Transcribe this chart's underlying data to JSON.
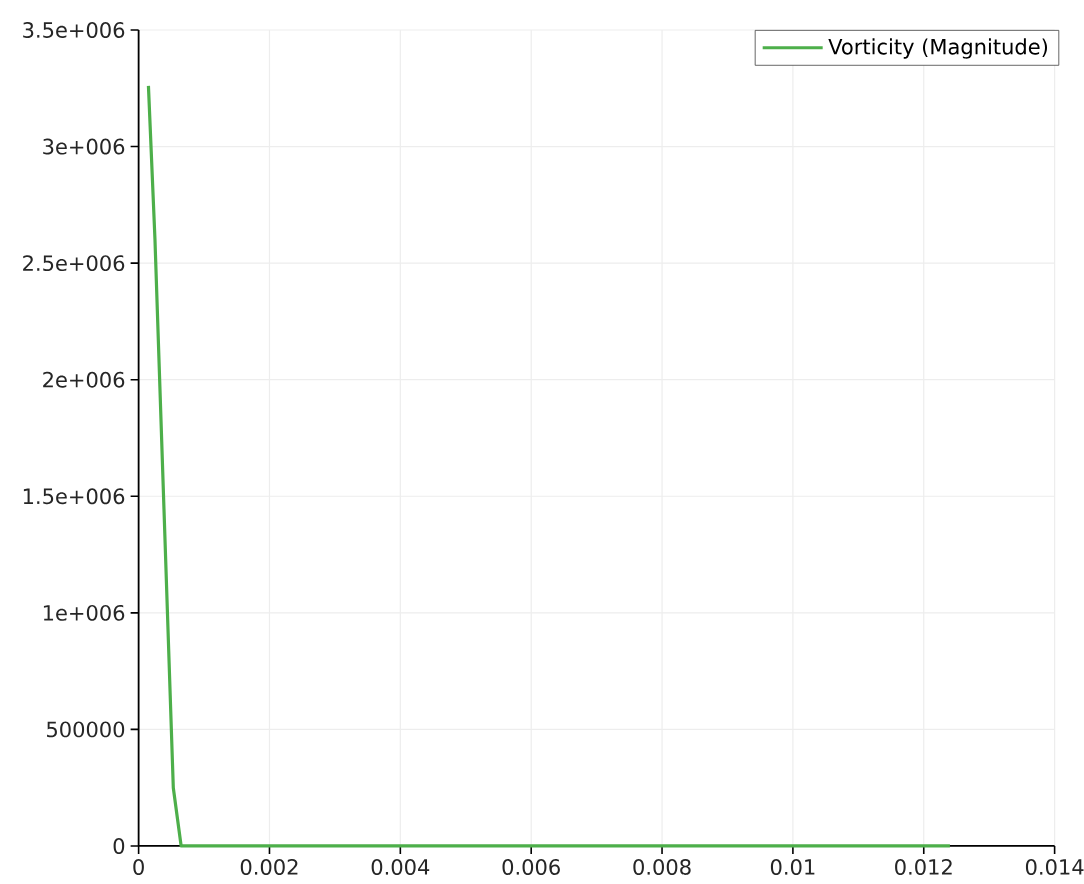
{
  "chart_data": {
    "type": "line",
    "series": [
      {
        "name": "Vorticity (Magnitude)",
        "color": "#4daf4a",
        "x": [
          0.00015,
          0.00025,
          0.00053,
          0.00065,
          0.0124
        ],
        "values": [
          3260000,
          2600000,
          250000,
          0,
          0
        ]
      }
    ],
    "xlim": [
      0,
      0.014
    ],
    "ylim": [
      0,
      3500000
    ],
    "xticks": [
      0,
      0.002,
      0.004,
      0.006,
      0.008,
      0.01,
      0.012,
      0.014
    ],
    "yticks": [
      0,
      500000,
      {
        "value": 1000000,
        "label": "1e+006"
      },
      {
        "value": 1500000,
        "label": "1.5e+006"
      },
      {
        "value": 2000000,
        "label": "2e+006"
      },
      {
        "value": 2500000,
        "label": "2.5e+006"
      },
      {
        "value": 3000000,
        "label": "3e+006"
      },
      {
        "value": 3500000,
        "label": "3.5e+006"
      }
    ],
    "grid": true,
    "legend": "top right",
    "line_style": "solid"
  }
}
